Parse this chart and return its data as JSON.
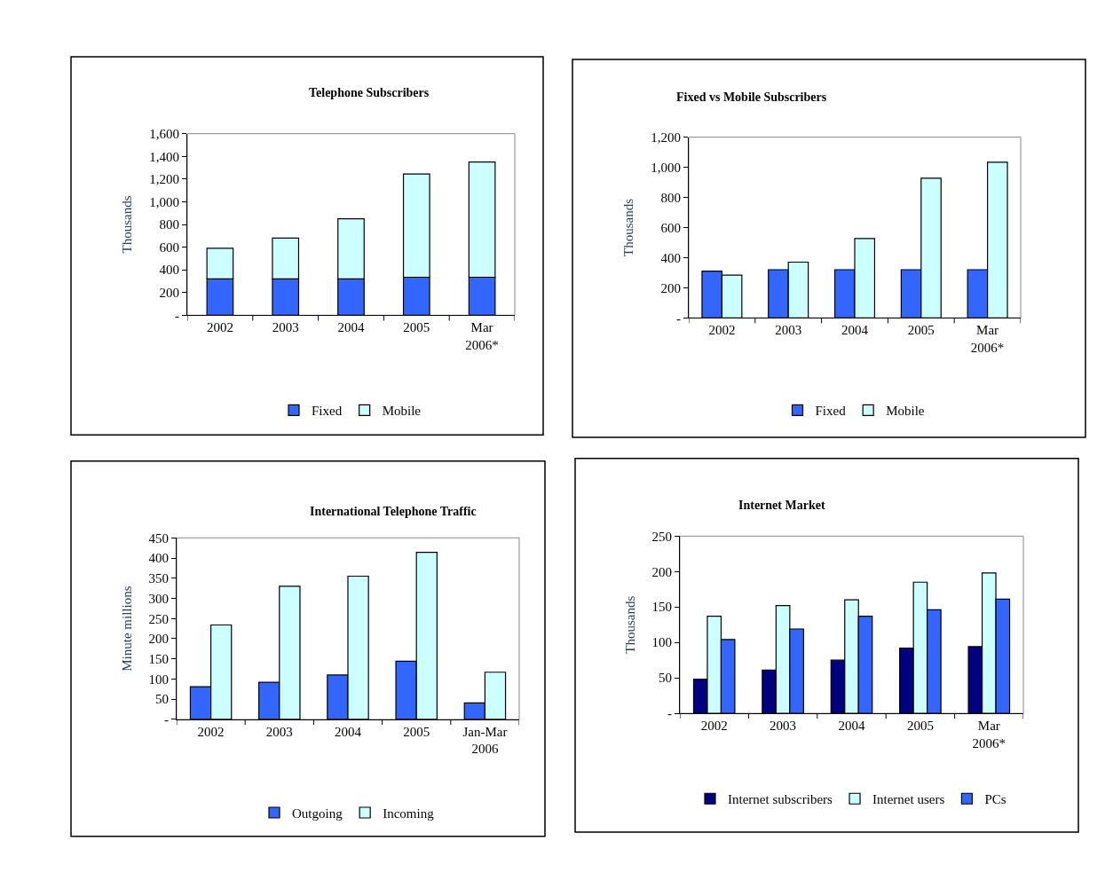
{
  "chart_data": [
    {
      "type": "bar",
      "title": "Telephone Subscribers",
      "ylabel": "Thousands",
      "stacked": true,
      "legend": "bottom",
      "categories": [
        "2002",
        "2003",
        "2004",
        "2005",
        "Mar\n2006*"
      ],
      "series": [
        {
          "name": "Fixed",
          "color": "#3366ff",
          "values": [
            320,
            320,
            320,
            335,
            335
          ]
        },
        {
          "name": "Mobile",
          "color": "#ccffff",
          "values": [
            270,
            360,
            530,
            910,
            1015
          ]
        }
      ],
      "ylim": [
        0,
        1600
      ],
      "yticks": [
        {
          "value": 0,
          "label": "-"
        },
        {
          "value": 200,
          "label": "200"
        },
        {
          "value": 400,
          "label": "400"
        },
        {
          "value": 600,
          "label": "600"
        },
        {
          "value": 800,
          "label": "800"
        },
        {
          "value": 1000,
          "label": "1,000"
        },
        {
          "value": 1200,
          "label": "1,200"
        },
        {
          "value": 1400,
          "label": "1,400"
        },
        {
          "value": 1600,
          "label": "1,600"
        }
      ]
    },
    {
      "type": "bar",
      "title": "Fixed vs Mobile Subscribers",
      "ylabel": "Thousands",
      "legend": "bottom",
      "categories": [
        "2002",
        "2003",
        "2004",
        "2005",
        "Mar\n2006*"
      ],
      "series": [
        {
          "name": "Fixed",
          "color": "#3366ff",
          "values": [
            310,
            320,
            320,
            320,
            320
          ]
        },
        {
          "name": "Mobile",
          "color": "#ccffff",
          "values": [
            284,
            370,
            527,
            927,
            1034
          ]
        }
      ],
      "ylim": [
        0,
        1200
      ],
      "yticks": [
        {
          "value": 0,
          "label": "-"
        },
        {
          "value": 200,
          "label": "200"
        },
        {
          "value": 400,
          "label": "400"
        },
        {
          "value": 600,
          "label": "600"
        },
        {
          "value": 800,
          "label": "800"
        },
        {
          "value": 1000,
          "label": "1,000"
        },
        {
          "value": 1200,
          "label": "1,200"
        }
      ]
    },
    {
      "type": "bar",
      "title": "International Telephone Traffic",
      "ylabel": "Minute millions",
      "legend": "bottom",
      "categories": [
        "2002",
        "2003",
        "2004",
        "2005",
        "Jan-Mar\n2006"
      ],
      "series": [
        {
          "name": "Outgoing",
          "color": "#3366ff",
          "values": [
            81,
            92,
            110,
            144,
            41
          ]
        },
        {
          "name": "Incoming",
          "color": "#ccffff",
          "values": [
            234,
            330,
            355,
            414,
            117
          ]
        }
      ],
      "ylim": [
        0,
        450
      ],
      "yticks": [
        {
          "value": 0,
          "label": "-"
        },
        50,
        100,
        150,
        200,
        250,
        300,
        350,
        400,
        450
      ]
    },
    {
      "type": "bar",
      "title": "Internet Market",
      "ylabel": "Thousands",
      "legend": "bottom",
      "categories": [
        "2002",
        "2003",
        "2004",
        "2005",
        "Mar\n2006*"
      ],
      "series": [
        {
          "name": "Internet subscribers",
          "color": "#000080",
          "values": [
            48,
            61,
            75,
            92,
            94
          ]
        },
        {
          "name": "Internet users",
          "color": "#ccffff",
          "values": [
            137,
            152,
            160,
            185,
            198
          ]
        },
        {
          "name": "PCs",
          "color": "#3366ff",
          "values": [
            104,
            119,
            137,
            146,
            161
          ]
        }
      ],
      "ylim": [
        0,
        250
      ],
      "yticks": [
        {
          "value": 0,
          "label": "-"
        },
        50,
        100,
        150,
        200,
        250
      ]
    }
  ]
}
